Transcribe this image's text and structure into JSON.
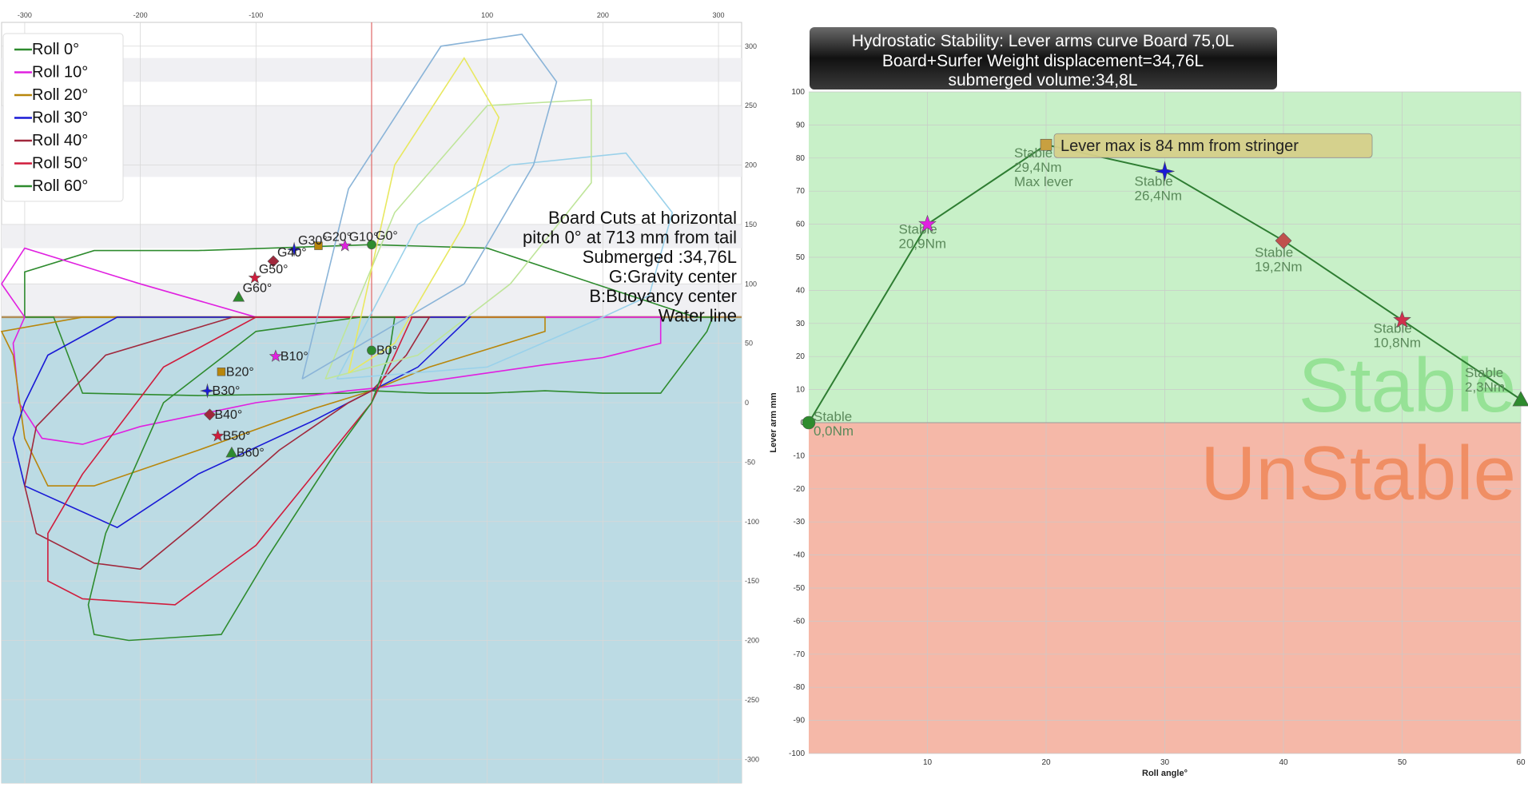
{
  "chart_data": [
    {
      "type": "scatter",
      "x_ticks": [
        "-300",
        "-200",
        "-100",
        "100",
        "200",
        "300"
      ],
      "y_ticks": [
        "300",
        "250",
        "200",
        "150",
        "100",
        "50",
        "0",
        "-50",
        "-100",
        "-150",
        "-200",
        "-250",
        "-300"
      ],
      "xlim": [
        -320,
        320
      ],
      "ylim": [
        -320,
        320
      ],
      "grid": true,
      "water_line_y": 72,
      "legend_position": "top-left",
      "legend": [
        {
          "name": "Roll 0°",
          "color": "#2e8b2e"
        },
        {
          "name": "Roll 10°",
          "color": "#e020e0"
        },
        {
          "name": "Roll 20°",
          "color": "#b8860b"
        },
        {
          "name": "Roll 30°",
          "color": "#1a1ad6"
        },
        {
          "name": "Roll 40°",
          "color": "#a0283c"
        },
        {
          "name": "Roll 50°",
          "color": "#d01c3c"
        },
        {
          "name": "Roll 60°",
          "color": "#2e8b2e"
        }
      ],
      "notes": [
        "Board Cuts at horizontal",
        "pitch 0° at 713 mm from tail",
        "Submerged :34,76L",
        "G:Gravity center",
        "B:Buoyancy center",
        "Water line"
      ],
      "gravity_centers": [
        {
          "label": "G0°",
          "x": 0,
          "y": 133,
          "shape": "circle",
          "color": "#2e8b2e"
        },
        {
          "label": "G10°",
          "x": -23,
          "y": 132,
          "shape": "star",
          "color": "#e020e0"
        },
        {
          "label": "G20°",
          "x": -46,
          "y": 132,
          "shape": "square",
          "color": "#b8860b"
        },
        {
          "label": "G30°",
          "x": -67,
          "y": 129,
          "shape": "star4",
          "color": "#1a1ad6"
        },
        {
          "label": "G40°",
          "x": -85,
          "y": 119,
          "shape": "diamond",
          "color": "#a0283c"
        },
        {
          "label": "G50°",
          "x": -101,
          "y": 105,
          "shape": "star",
          "color": "#d01c3c"
        },
        {
          "label": "G60°",
          "x": -115,
          "y": 89,
          "shape": "triangle",
          "color": "#2e8b2e"
        }
      ],
      "buoyancy_centers": [
        {
          "label": "B0°",
          "x": 0,
          "y": 44,
          "shape": "circle",
          "color": "#2e8b2e"
        },
        {
          "label": "B10°",
          "x": -83,
          "y": 39,
          "shape": "star",
          "color": "#e020e0"
        },
        {
          "label": "B20°",
          "x": -130,
          "y": 26,
          "shape": "square",
          "color": "#b8860b"
        },
        {
          "label": "B30°",
          "x": -142,
          "y": 10,
          "shape": "star4",
          "color": "#1a1ad6"
        },
        {
          "label": "B40°",
          "x": -140,
          "y": -10,
          "shape": "diamond",
          "color": "#a0283c"
        },
        {
          "label": "B50°",
          "x": -133,
          "y": -28,
          "shape": "star",
          "color": "#d01c3c"
        },
        {
          "label": "B60°",
          "x": -121,
          "y": -42,
          "shape": "triangle",
          "color": "#2e8b2e"
        }
      ],
      "sections": [
        {
          "name": "Roll 0°",
          "color": "#2e8b2e",
          "points": [
            [
              -300,
              72
            ],
            [
              -275,
              72
            ],
            [
              -250,
              8
            ],
            [
              -150,
              6
            ],
            [
              -20,
              8
            ],
            [
              0,
              10
            ],
            [
              50,
              8
            ],
            [
              100,
              8
            ],
            [
              150,
              10
            ],
            [
              200,
              8
            ],
            [
              250,
              8
            ],
            [
              290,
              60
            ],
            [
              295,
              72
            ],
            [
              280,
              72
            ],
            [
              100,
              130
            ],
            [
              0,
              133
            ],
            [
              -150,
              128
            ],
            [
              -240,
              128
            ],
            [
              -300,
              110
            ],
            [
              -300,
              72
            ]
          ]
        },
        {
          "name": "Roll 10°",
          "color": "#e020e0",
          "points": [
            [
              -300,
              72
            ],
            [
              -310,
              50
            ],
            [
              -305,
              0
            ],
            [
              -285,
              -30
            ],
            [
              -250,
              -35
            ],
            [
              -200,
              -20
            ],
            [
              -100,
              0
            ],
            [
              -20,
              10
            ],
            [
              0,
              12
            ],
            [
              50,
              18
            ],
            [
              100,
              25
            ],
            [
              150,
              32
            ],
            [
              200,
              38
            ],
            [
              250,
              50
            ],
            [
              250,
              72
            ],
            [
              100,
              72
            ],
            [
              0,
              72
            ],
            [
              -100,
              72
            ],
            [
              -200,
              100
            ],
            [
              -300,
              130
            ],
            [
              -320,
              100
            ],
            [
              -300,
              72
            ]
          ]
        },
        {
          "name": "Roll 20°",
          "color": "#b8860b",
          "points": [
            [
              -310,
              40
            ],
            [
              -300,
              -30
            ],
            [
              -280,
              -70
            ],
            [
              -240,
              -70
            ],
            [
              -150,
              -40
            ],
            [
              -50,
              -5
            ],
            [
              0,
              10
            ],
            [
              50,
              30
            ],
            [
              100,
              45
            ],
            [
              150,
              60
            ],
            [
              150,
              72
            ],
            [
              50,
              72
            ],
            [
              -50,
              72
            ],
            [
              -150,
              72
            ],
            [
              -250,
              72
            ],
            [
              -320,
              60
            ],
            [
              -310,
              40
            ]
          ]
        },
        {
          "name": "Roll 30°",
          "color": "#1a1ad6",
          "points": [
            [
              -300,
              0
            ],
            [
              -310,
              -30
            ],
            [
              -300,
              -70
            ],
            [
              -220,
              -105
            ],
            [
              -150,
              -60
            ],
            [
              -50,
              -15
            ],
            [
              0,
              10
            ],
            [
              40,
              30
            ],
            [
              85,
              72
            ],
            [
              0,
              72
            ],
            [
              -150,
              72
            ],
            [
              -220,
              72
            ],
            [
              -280,
              40
            ],
            [
              -300,
              0
            ]
          ]
        },
        {
          "name": "Roll 40°",
          "color": "#a0283c",
          "points": [
            [
              -290,
              -20
            ],
            [
              -300,
              -70
            ],
            [
              -290,
              -110
            ],
            [
              -240,
              -135
            ],
            [
              -200,
              -140
            ],
            [
              -150,
              -100
            ],
            [
              -80,
              -40
            ],
            [
              -20,
              0
            ],
            [
              0,
              10
            ],
            [
              30,
              40
            ],
            [
              50,
              72
            ],
            [
              0,
              72
            ],
            [
              -120,
              72
            ],
            [
              -230,
              40
            ],
            [
              -290,
              -20
            ]
          ]
        },
        {
          "name": "Roll 50°",
          "color": "#d01c3c",
          "points": [
            [
              -250,
              -60
            ],
            [
              -280,
              -110
            ],
            [
              -280,
              -150
            ],
            [
              -250,
              -165
            ],
            [
              -170,
              -170
            ],
            [
              -100,
              -120
            ],
            [
              -50,
              -60
            ],
            [
              0,
              0
            ],
            [
              20,
              40
            ],
            [
              35,
              72
            ],
            [
              0,
              72
            ],
            [
              -100,
              72
            ],
            [
              -180,
              30
            ],
            [
              -250,
              -60
            ]
          ]
        },
        {
          "name": "Roll 60°",
          "color": "#2e8b2e",
          "points": [
            [
              -230,
              -110
            ],
            [
              -245,
              -170
            ],
            [
              -240,
              -195
            ],
            [
              -210,
              -200
            ],
            [
              -130,
              -195
            ],
            [
              -90,
              -130
            ],
            [
              -30,
              -40
            ],
            [
              0,
              0
            ],
            [
              15,
              40
            ],
            [
              20,
              72
            ],
            [
              -10,
              72
            ],
            [
              -100,
              60
            ],
            [
              -180,
              0
            ],
            [
              -230,
              -110
            ]
          ]
        },
        {
          "name": "Roll 10° outline",
          "color": "#9ad1ea",
          "points": [
            [
              -30,
              20
            ],
            [
              40,
              150
            ],
            [
              120,
              200
            ],
            [
              220,
              210
            ],
            [
              260,
              160
            ],
            [
              240,
              90
            ],
            [
              200,
              72
            ],
            [
              100,
              30
            ],
            [
              -30,
              20
            ]
          ]
        },
        {
          "name": "Roll 20° outline",
          "color": "#bfe59a",
          "points": [
            [
              -40,
              20
            ],
            [
              20,
              160
            ],
            [
              100,
              250
            ],
            [
              190,
              255
            ],
            [
              190,
              185
            ],
            [
              120,
              100
            ],
            [
              40,
              40
            ],
            [
              -40,
              20
            ]
          ]
        },
        {
          "name": "Roll 30° outline",
          "color": "#e8e860",
          "points": [
            [
              -20,
              25
            ],
            [
              20,
              200
            ],
            [
              80,
              290
            ],
            [
              110,
              240
            ],
            [
              80,
              150
            ],
            [
              20,
              50
            ],
            [
              -20,
              25
            ]
          ]
        },
        {
          "name": "Roll 40° outline",
          "color": "#8ab4d8",
          "points": [
            [
              -60,
              20
            ],
            [
              -20,
              180
            ],
            [
              60,
              300
            ],
            [
              130,
              310
            ],
            [
              160,
              270
            ],
            [
              140,
              200
            ],
            [
              80,
              100
            ],
            [
              -60,
              20
            ]
          ]
        }
      ]
    },
    {
      "type": "line",
      "title": "Hydrostatic Stability: Lever arms curve Board 75,0L",
      "subtitle_lines": [
        "Board+Surfer Weight displacement=34,76L",
        "submerged volume:34,8L"
      ],
      "xlabel": "Roll angle°",
      "ylabel": "Lever arm mm",
      "xlim": [
        0,
        60
      ],
      "ylim": [
        -100,
        100
      ],
      "x_ticks": [
        "10",
        "20",
        "30",
        "40",
        "50",
        "60"
      ],
      "y_ticks": [
        "100",
        "90",
        "80",
        "70",
        "60",
        "50",
        "40",
        "30",
        "20",
        "10",
        "0",
        "-10",
        "-20",
        "-30",
        "-40",
        "-50",
        "-60",
        "-70",
        "-80",
        "-90",
        "-100"
      ],
      "grid": true,
      "zones": [
        {
          "label": "Stable",
          "from": 0,
          "to": 100,
          "color": "#c8f0c8"
        },
        {
          "label": "UnStable",
          "from": -100,
          "to": 0,
          "color": "#f5b8a8"
        }
      ],
      "series": [
        {
          "x": [
            0,
            10,
            20,
            30,
            40,
            50,
            60
          ],
          "values": [
            0,
            60,
            84,
            76,
            55,
            31,
            7
          ],
          "color": "#2e7d32"
        }
      ],
      "point_labels": [
        {
          "x": 0,
          "y": 0,
          "shape": "circle",
          "color": "#2e8b2e",
          "lines": [
            "Stable",
            "0,0Nm"
          ]
        },
        {
          "x": 10,
          "y": 60,
          "shape": "star",
          "color": "#e020e0",
          "lines": [
            "Stable",
            "20,9Nm"
          ]
        },
        {
          "x": 20,
          "y": 84,
          "shape": "square",
          "color": "#c8a040",
          "lines": [
            "Stable",
            "29,4Nm",
            "Max lever"
          ]
        },
        {
          "x": 30,
          "y": 76,
          "shape": "star4",
          "color": "#1a1ad6",
          "lines": [
            "Stable",
            "26,4Nm"
          ]
        },
        {
          "x": 40,
          "y": 55,
          "shape": "diamond",
          "color": "#c0504d",
          "lines": [
            "Stable",
            "19,2Nm"
          ]
        },
        {
          "x": 50,
          "y": 31,
          "shape": "star",
          "color": "#d0304c",
          "lines": [
            "Stable",
            "10,8Nm"
          ]
        },
        {
          "x": 60,
          "y": 7,
          "shape": "triangle",
          "color": "#2e8b2e",
          "lines": [
            "Stable",
            "2,3Nm"
          ]
        }
      ],
      "callout": "Lever max is 84 mm from stringer"
    }
  ]
}
